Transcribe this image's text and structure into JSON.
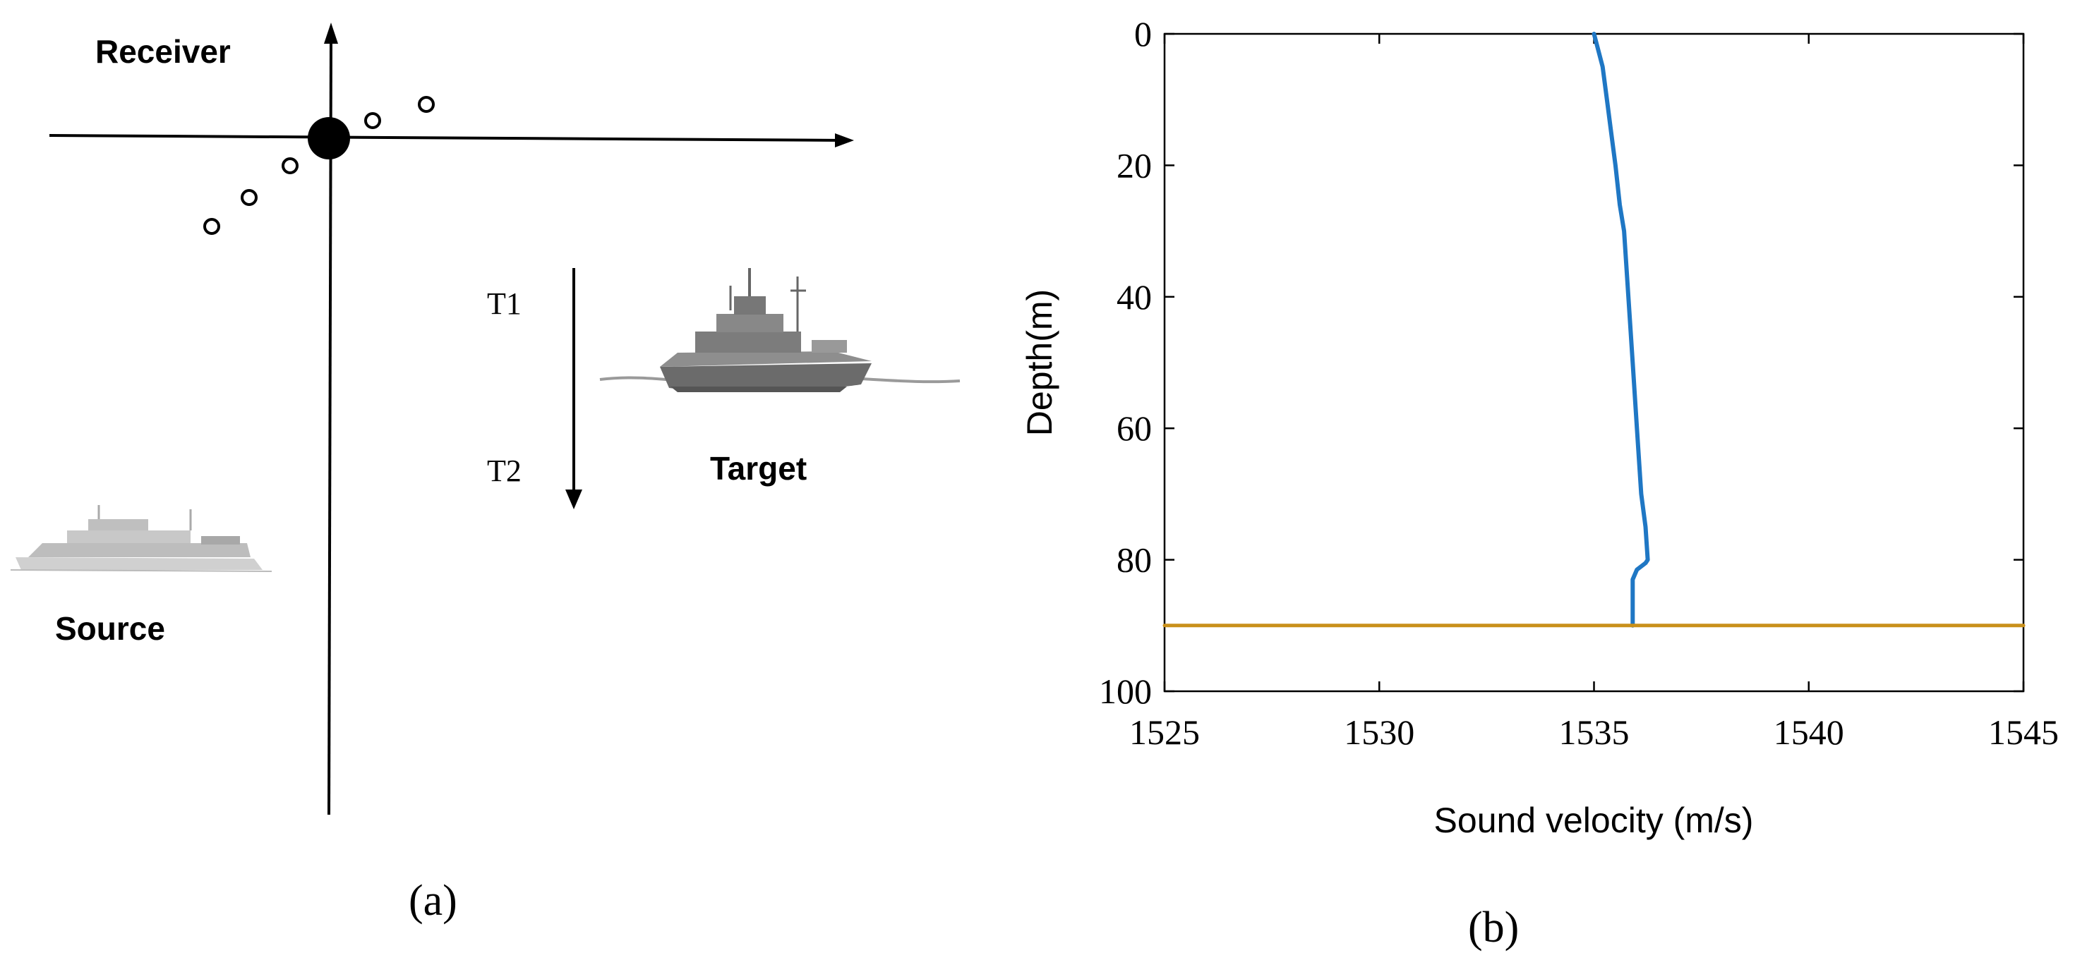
{
  "panel_a": {
    "caption": "(a)",
    "receiver_label": "Receiver",
    "source_label": "Source",
    "target_label": "Target",
    "t1_label": "T1",
    "t2_label": "T2"
  },
  "panel_b": {
    "caption": "(b)"
  },
  "colors": {
    "profile_line": "#1f77c4",
    "bottom_line": "#c9901a",
    "axes": "#000000"
  },
  "chart_data": {
    "type": "line",
    "title": "",
    "xlabel": "Sound velocity (m/s)",
    "ylabel": "Depth(m)",
    "xlim": [
      1525,
      1545
    ],
    "ylim": [
      0,
      100
    ],
    "y_reversed": true,
    "xticks": [
      1525,
      1530,
      1535,
      1540,
      1545
    ],
    "yticks": [
      0,
      20,
      40,
      60,
      80,
      100
    ],
    "grid": false,
    "series": [
      {
        "x": [
          1535.0,
          1535.2,
          1535.3,
          1535.4,
          1535.5,
          1535.6,
          1535.7,
          1535.8,
          1535.9,
          1536.0,
          1536.1,
          1536.2,
          1536.25,
          1536.2,
          1536.0,
          1535.9,
          1535.9,
          1535.9
        ],
        "y": [
          0,
          5,
          10,
          15,
          20,
          26,
          30,
          40,
          50,
          60,
          70,
          75,
          80,
          80.5,
          81.5,
          83,
          86,
          90
        ],
        "color": "#1f77c4"
      },
      {
        "x": [
          1525,
          1545
        ],
        "y": [
          90,
          90
        ],
        "color": "#c9901a"
      }
    ]
  }
}
